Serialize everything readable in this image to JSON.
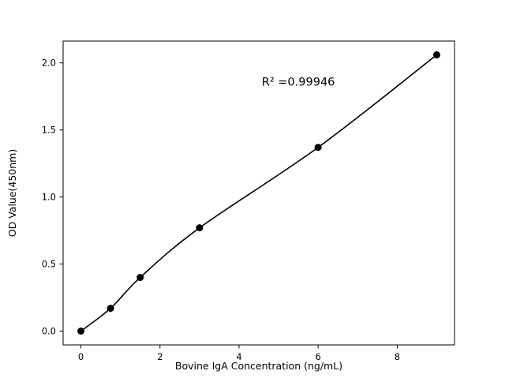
{
  "chart_data": {
    "type": "scatter",
    "title": "",
    "xlabel": "Bovine IgA Concentration (ng/mL)",
    "ylabel": "OD Value(450nm)",
    "x": [
      0,
      0.75,
      1.5,
      3,
      6,
      9
    ],
    "y": [
      0.0,
      0.17,
      0.4,
      0.77,
      1.37,
      2.06
    ],
    "fit_line": true,
    "xlim": [
      -0.45,
      9.45
    ],
    "ylim": [
      -0.103,
      2.163
    ],
    "xticks": [
      0,
      2,
      4,
      6,
      8
    ],
    "xtick_labels": [
      "0",
      "2",
      "4",
      "6",
      "8"
    ],
    "yticks": [
      0.0,
      0.5,
      1.0,
      1.5,
      2.0
    ],
    "ytick_labels": [
      "0.0",
      "0.5",
      "1.0",
      "1.5",
      "2.0"
    ],
    "grid": false,
    "legend": "none",
    "annotation": {
      "text": "R² =0.99946",
      "x": 5.5,
      "y": 1.83
    },
    "colors": {
      "marker": "#000000",
      "line": "#000000",
      "axis": "#000000",
      "background": "#ffffff"
    },
    "marker_radius": 4.5,
    "line_width": 1.6
  }
}
